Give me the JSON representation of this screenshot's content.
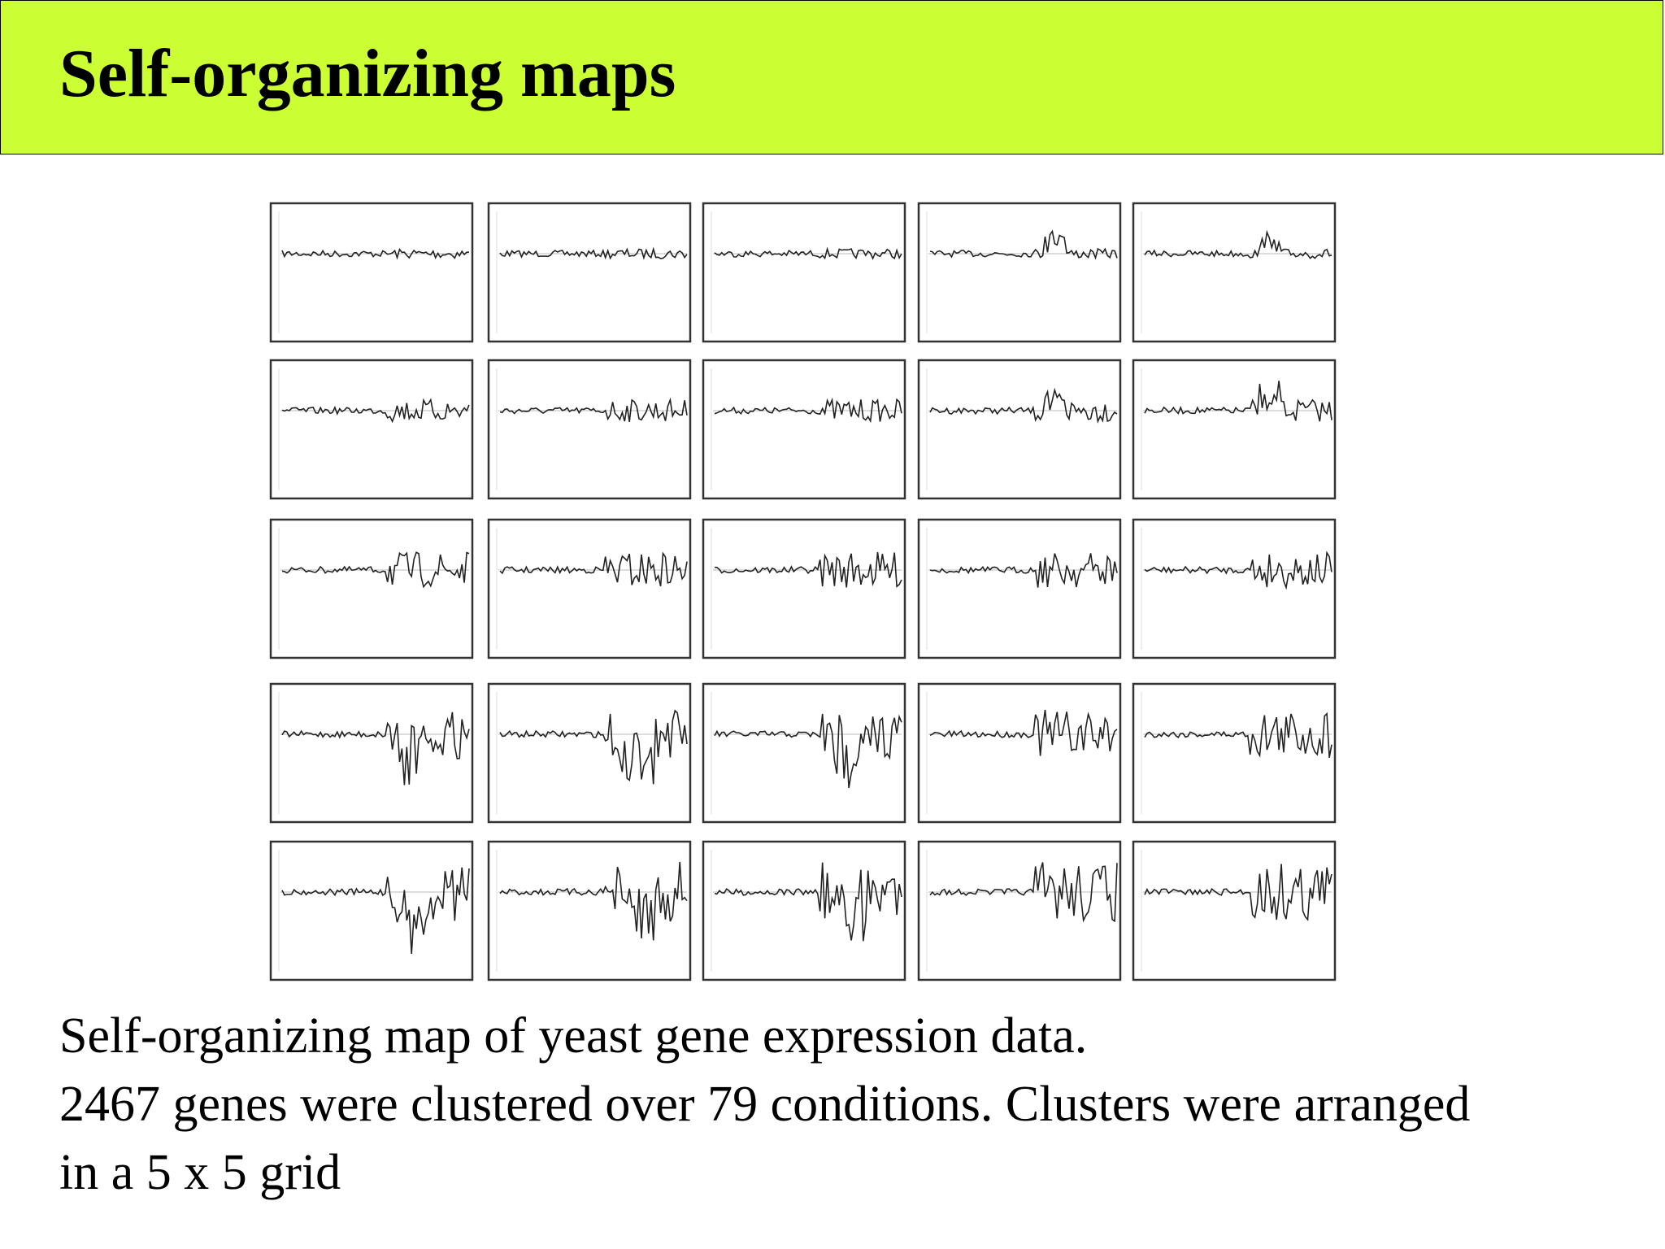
{
  "header": {
    "title": "Self-organizing maps"
  },
  "caption": {
    "lines": [
      "Self-organizing map of yeast gene expression data.",
      "2467 genes were clustered over 79 conditions. Clusters were arranged",
      "in a 5 x 5 grid"
    ]
  }
}
